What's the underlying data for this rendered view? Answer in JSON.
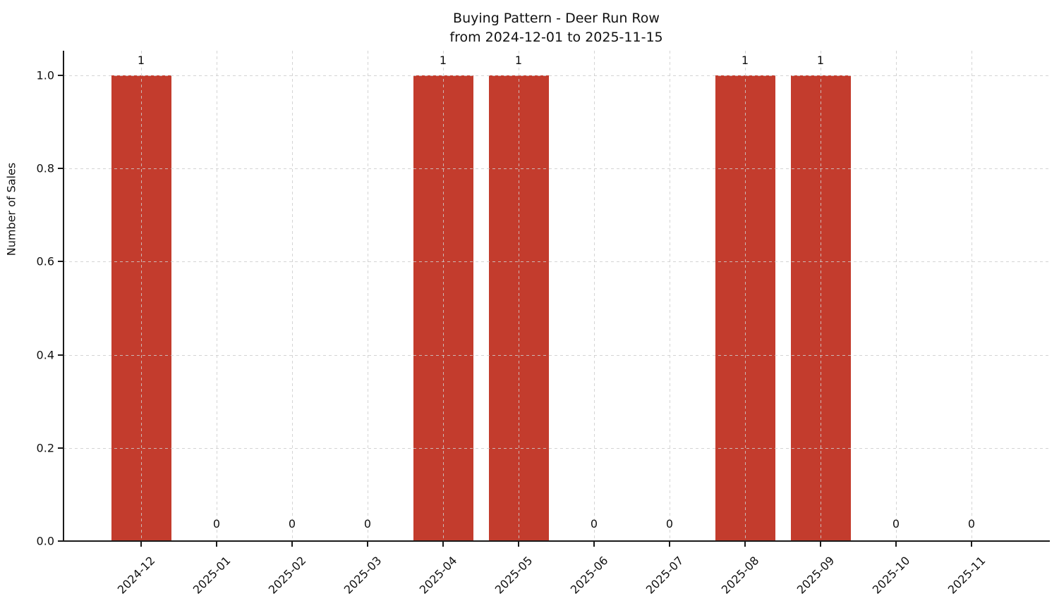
{
  "chart_data": {
    "type": "bar",
    "title": "Buying Pattern - Deer Run Row",
    "subtitle": "from 2024-12-01 to 2025-11-15",
    "xlabel": "",
    "ylabel": "Number of Sales",
    "categories": [
      "2024-12",
      "2025-01",
      "2025-02",
      "2025-03",
      "2025-04",
      "2025-05",
      "2025-06",
      "2025-07",
      "2025-08",
      "2025-09",
      "2025-10",
      "2025-11"
    ],
    "values": [
      1,
      0,
      0,
      0,
      1,
      1,
      0,
      0,
      1,
      1,
      0,
      0
    ],
    "bar_labels": [
      "1",
      "0",
      "0",
      "0",
      "1",
      "1",
      "0",
      "0",
      "1",
      "1",
      "0",
      "0"
    ],
    "yticks": [
      0.0,
      0.2,
      0.4,
      0.6,
      0.8,
      1.0
    ],
    "ytick_labels": [
      "0.0",
      "0.2",
      "0.4",
      "0.6",
      "0.8",
      "1.0"
    ],
    "ylim": [
      0,
      1.05
    ],
    "grid": true,
    "grid_style": "dashed",
    "legend_visible": false,
    "bar_color": "#c33c2d",
    "axis_color": "#1a1a1a",
    "grid_color": "#cdcdcd",
    "background_color": "#ffffff",
    "x_tick_rotation_deg": 45
  }
}
